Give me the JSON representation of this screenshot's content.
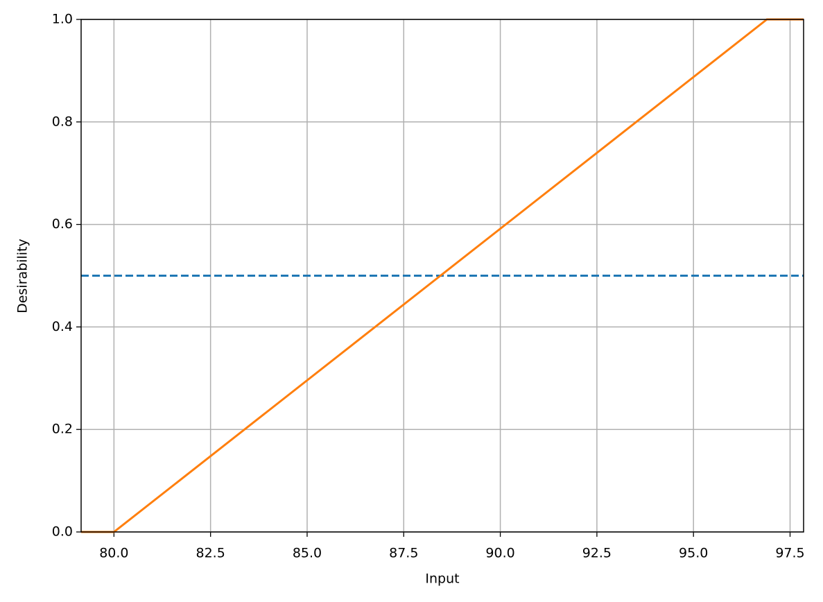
{
  "chart_data": {
    "type": "line",
    "xlabel": "Input",
    "ylabel": "Desirability",
    "xlim": [
      79.15,
      97.85
    ],
    "ylim": [
      0,
      1
    ],
    "xticks": [
      {
        "value": 80,
        "label": "80.0"
      },
      {
        "value": 82.5,
        "label": "82.5"
      },
      {
        "value": 85,
        "label": "85.0"
      },
      {
        "value": 87.5,
        "label": "87.5"
      },
      {
        "value": 90,
        "label": "90.0"
      },
      {
        "value": 92.5,
        "label": "92.5"
      },
      {
        "value": 95,
        "label": "95.0"
      },
      {
        "value": 97.5,
        "label": "97.5"
      }
    ],
    "yticks": [
      {
        "value": 0,
        "label": "0.0"
      },
      {
        "value": 0.2,
        "label": "0.2"
      },
      {
        "value": 0.4,
        "label": "0.4"
      },
      {
        "value": 0.6,
        "label": "0.6"
      },
      {
        "value": 0.8,
        "label": "0.8"
      },
      {
        "value": 1,
        "label": "1.0"
      }
    ],
    "grid": true,
    "series": [
      {
        "color": "#ff7f0e",
        "x": [
          79.15,
          80,
          96.9,
          97.85
        ],
        "values": [
          0,
          0,
          1,
          1
        ]
      }
    ],
    "reference_line": {
      "value": 0.5,
      "color": "#1f77b4",
      "dashed": true
    }
  }
}
